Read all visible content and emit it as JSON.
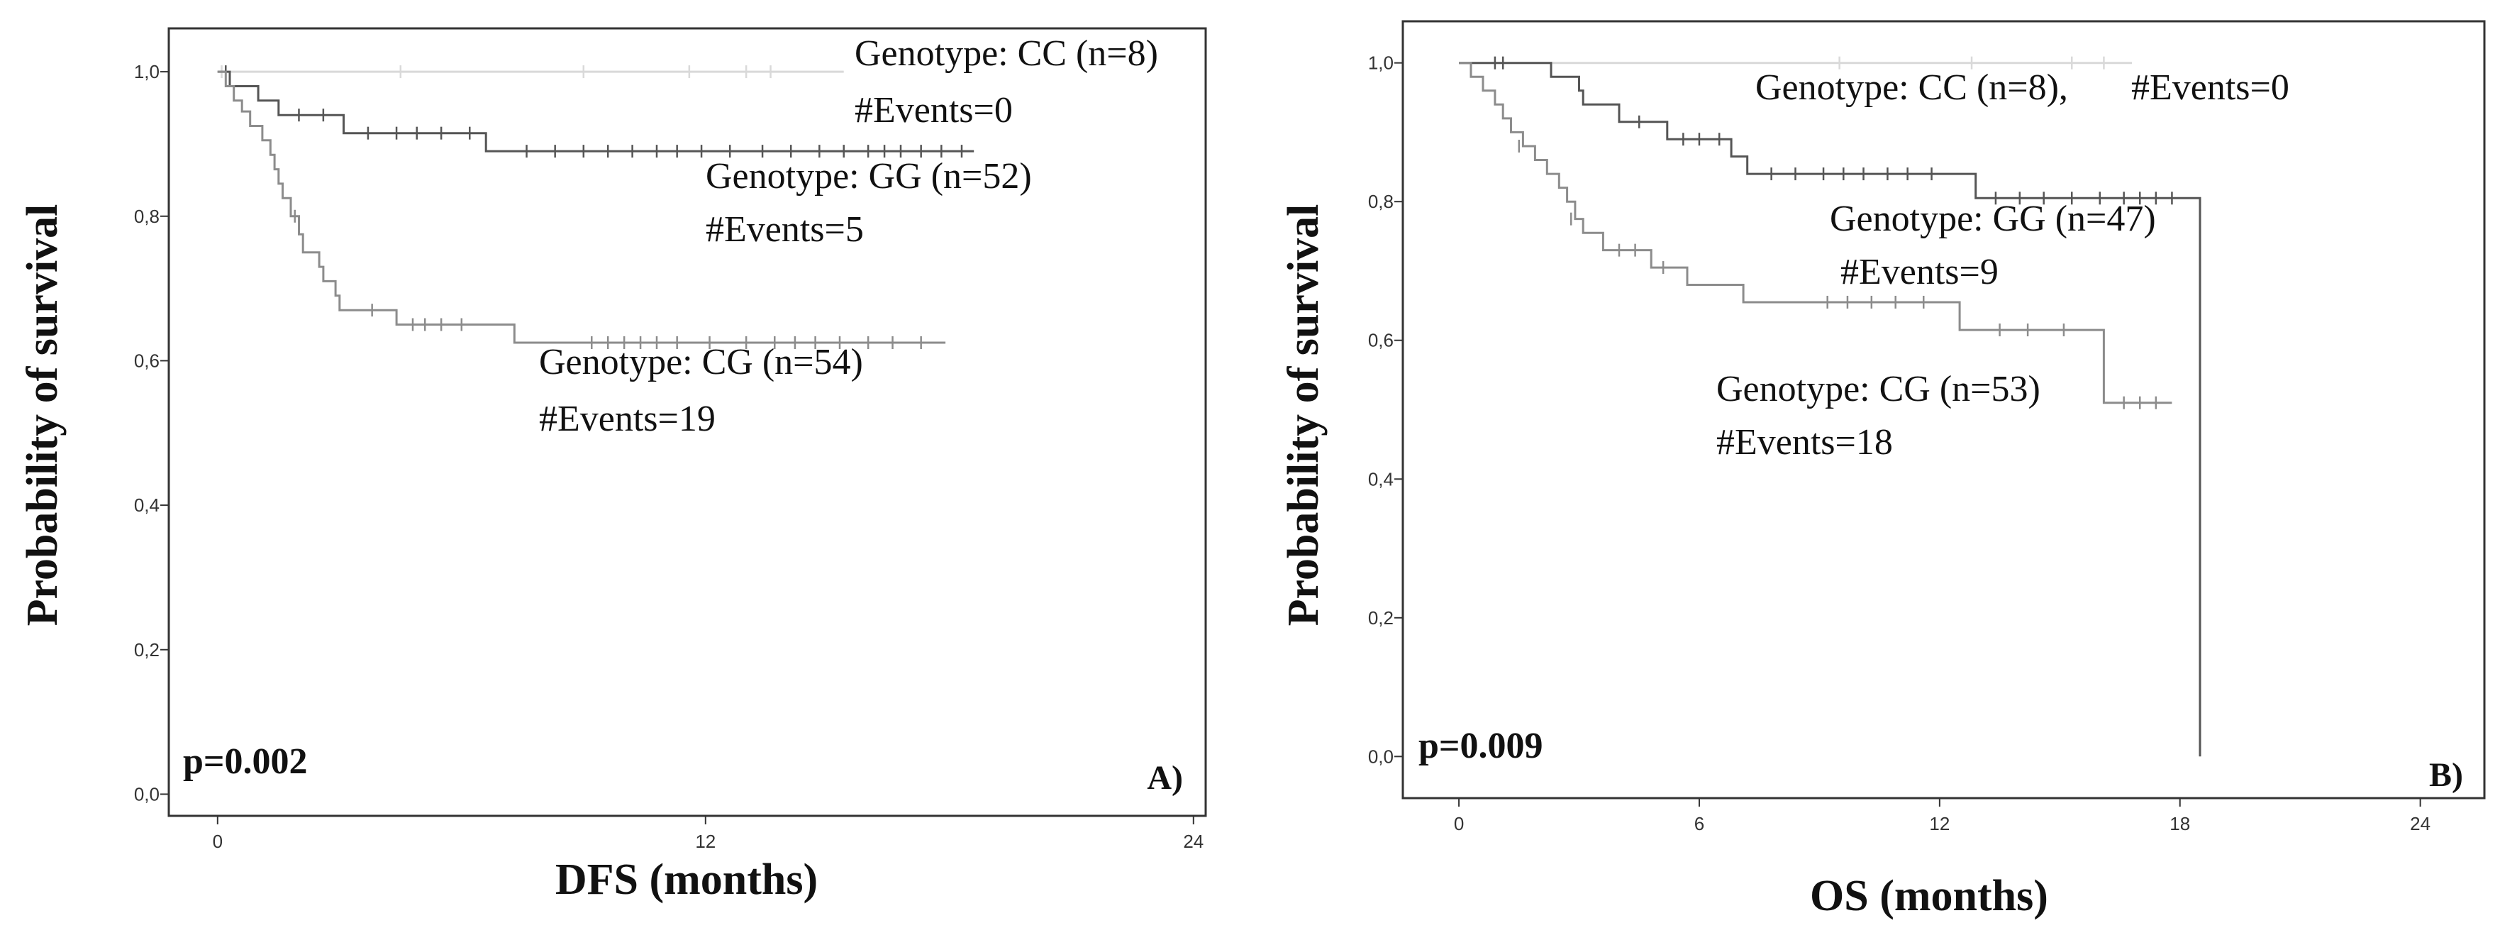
{
  "chart_data": [
    {
      "type": "line",
      "subtype": "kaplan-meier",
      "panel_label": "A)",
      "xlabel": "DFS (months)",
      "ylabel": "Probability of survival",
      "xlim": [
        -1.2,
        24.3
      ],
      "ylim": [
        -0.03,
        1.06
      ],
      "x_ticks": [
        0,
        12,
        24
      ],
      "x_tick_labels": [
        "0",
        "12",
        "24"
      ],
      "y_ticks": [
        0,
        0.2,
        0.4,
        0.6,
        0.8,
        1.0
      ],
      "y_tick_labels": [
        "0,0",
        "0,2",
        "0,4",
        "0,6",
        "0,8",
        "1,0"
      ],
      "grid": false,
      "p_value": "p=0.002",
      "series": [
        {
          "name": "Genotype: CC (n=8)",
          "events_label": "#Events=0",
          "color": "#d9d9d9",
          "steps": [
            [
              0,
              1.0
            ],
            [
              15.4,
              1.0
            ]
          ],
          "censored": [
            [
              0.1,
              1.0
            ],
            [
              4.5,
              1.0
            ],
            [
              9.0,
              1.0
            ],
            [
              11.6,
              1.0
            ],
            [
              13.0,
              1.0
            ],
            [
              13.6,
              1.0
            ]
          ]
        },
        {
          "name": "Genotype: GG (n=52)",
          "events_label": "#Events=5",
          "color": "#555555",
          "steps": [
            [
              0,
              1.0
            ],
            [
              0.3,
              0.98
            ],
            [
              1.0,
              0.96
            ],
            [
              1.5,
              0.94
            ],
            [
              3.1,
              0.915
            ],
            [
              6.5,
              0.915
            ],
            [
              6.6,
              0.89
            ],
            [
              18.6,
              0.89
            ]
          ],
          "censored": [
            [
              0.2,
              1.0
            ],
            [
              2.0,
              0.94
            ],
            [
              2.6,
              0.94
            ],
            [
              3.7,
              0.915
            ],
            [
              4.4,
              0.915
            ],
            [
              4.9,
              0.915
            ],
            [
              5.5,
              0.915
            ],
            [
              6.2,
              0.915
            ],
            [
              7.6,
              0.89
            ],
            [
              8.3,
              0.89
            ],
            [
              9.0,
              0.89
            ],
            [
              9.6,
              0.89
            ],
            [
              10.2,
              0.89
            ],
            [
              10.8,
              0.89
            ],
            [
              11.3,
              0.89
            ],
            [
              11.9,
              0.89
            ],
            [
              12.6,
              0.89
            ],
            [
              13.4,
              0.89
            ],
            [
              14.1,
              0.89
            ],
            [
              14.8,
              0.89
            ],
            [
              15.4,
              0.89
            ],
            [
              16.0,
              0.89
            ],
            [
              16.4,
              0.89
            ],
            [
              16.8,
              0.89
            ],
            [
              17.3,
              0.89
            ],
            [
              17.8,
              0.89
            ],
            [
              18.3,
              0.89
            ]
          ]
        },
        {
          "name": "Genotype: CG (n=54)",
          "events_label": "#Events=19",
          "color": "#8c8c8c",
          "steps": [
            [
              0,
              1.0
            ],
            [
              0.2,
              0.98
            ],
            [
              0.4,
              0.96
            ],
            [
              0.6,
              0.945
            ],
            [
              0.8,
              0.925
            ],
            [
              1.1,
              0.905
            ],
            [
              1.3,
              0.885
            ],
            [
              1.4,
              0.865
            ],
            [
              1.5,
              0.845
            ],
            [
              1.6,
              0.825
            ],
            [
              1.8,
              0.8
            ],
            [
              2.0,
              0.775
            ],
            [
              2.1,
              0.75
            ],
            [
              2.5,
              0.73
            ],
            [
              2.6,
              0.71
            ],
            [
              2.9,
              0.69
            ],
            [
              3.0,
              0.67
            ],
            [
              4.2,
              0.67
            ],
            [
              4.4,
              0.65
            ],
            [
              7.2,
              0.65
            ],
            [
              7.3,
              0.625
            ],
            [
              17.9,
              0.625
            ]
          ],
          "censored": [
            [
              1.9,
              0.8
            ],
            [
              3.8,
              0.67
            ],
            [
              4.8,
              0.65
            ],
            [
              5.1,
              0.65
            ],
            [
              5.5,
              0.65
            ],
            [
              6.0,
              0.65
            ],
            [
              9.2,
              0.625
            ],
            [
              9.6,
              0.625
            ],
            [
              10.0,
              0.625
            ],
            [
              10.4,
              0.625
            ],
            [
              10.8,
              0.625
            ],
            [
              11.3,
              0.625
            ],
            [
              12.1,
              0.625
            ],
            [
              13.0,
              0.625
            ],
            [
              13.7,
              0.625
            ],
            [
              14.2,
              0.625
            ],
            [
              14.7,
              0.625
            ],
            [
              15.3,
              0.625
            ],
            [
              16.0,
              0.625
            ],
            [
              16.6,
              0.625
            ],
            [
              17.3,
              0.625
            ]
          ]
        }
      ]
    },
    {
      "type": "line",
      "subtype": "kaplan-meier",
      "panel_label": "B)",
      "xlabel": "OS (months)",
      "ylabel": "Probability of survival",
      "xlim": [
        -1.4,
        25.6
      ],
      "ylim": [
        -0.06,
        1.06
      ],
      "x_ticks": [
        0,
        6,
        12,
        18,
        24
      ],
      "x_tick_labels": [
        "0",
        "6",
        "12",
        "18",
        "24"
      ],
      "y_ticks": [
        0,
        0.2,
        0.4,
        0.6,
        0.8,
        1.0
      ],
      "y_tick_labels": [
        "0,0",
        "0,2",
        "0,4",
        "0,6",
        "0,8",
        "1,0"
      ],
      "grid": false,
      "p_value": "p=0.009",
      "series": [
        {
          "name": "Genotype: CC (n=8),",
          "events_label": "#Events=0",
          "color": "#d9d9d9",
          "steps": [
            [
              0,
              1.0
            ],
            [
              16.8,
              1.0
            ]
          ],
          "censored": [
            [
              0.9,
              1.0
            ],
            [
              1.1,
              1.0
            ],
            [
              9.5,
              1.0
            ],
            [
              12.8,
              1.0
            ],
            [
              15.3,
              1.0
            ],
            [
              16.1,
              1.0
            ]
          ]
        },
        {
          "name": "Genotype: GG (n=47)",
          "events_label": "#Events=9",
          "color": "#555555",
          "steps": [
            [
              0,
              1.0
            ],
            [
              2.2,
              1.0
            ],
            [
              2.3,
              0.98
            ],
            [
              3.0,
              0.96
            ],
            [
              3.1,
              0.94
            ],
            [
              3.9,
              0.94
            ],
            [
              4.0,
              0.915
            ],
            [
              5.1,
              0.915
            ],
            [
              5.2,
              0.89
            ],
            [
              6.7,
              0.89
            ],
            [
              6.8,
              0.865
            ],
            [
              7.1,
              0.865
            ],
            [
              7.2,
              0.84
            ],
            [
              12.8,
              0.84
            ],
            [
              12.9,
              0.805
            ],
            [
              18.5,
              0.805
            ],
            [
              18.5,
              0.0
            ]
          ],
          "censored": [
            [
              0.9,
              1.0
            ],
            [
              1.1,
              1.0
            ],
            [
              4.5,
              0.915
            ],
            [
              5.6,
              0.89
            ],
            [
              6.0,
              0.89
            ],
            [
              6.5,
              0.89
            ],
            [
              7.8,
              0.84
            ],
            [
              8.4,
              0.84
            ],
            [
              9.1,
              0.84
            ],
            [
              9.6,
              0.84
            ],
            [
              10.1,
              0.84
            ],
            [
              10.7,
              0.84
            ],
            [
              11.2,
              0.84
            ],
            [
              11.8,
              0.84
            ],
            [
              13.4,
              0.805
            ],
            [
              14.0,
              0.805
            ],
            [
              14.6,
              0.805
            ],
            [
              15.3,
              0.805
            ],
            [
              16.0,
              0.805
            ],
            [
              16.6,
              0.805
            ],
            [
              17.0,
              0.805
            ],
            [
              17.4,
              0.805
            ],
            [
              17.8,
              0.805
            ]
          ]
        },
        {
          "name": "Genotype: CG (n=53)",
          "events_label": "#Events=18",
          "color": "#8c8c8c",
          "steps": [
            [
              0,
              1.0
            ],
            [
              0.3,
              0.98
            ],
            [
              0.6,
              0.96
            ],
            [
              0.9,
              0.94
            ],
            [
              1.1,
              0.92
            ],
            [
              1.3,
              0.9
            ],
            [
              1.6,
              0.88
            ],
            [
              1.9,
              0.86
            ],
            [
              2.2,
              0.84
            ],
            [
              2.5,
              0.82
            ],
            [
              2.7,
              0.8
            ],
            [
              2.9,
              0.775
            ],
            [
              3.1,
              0.755
            ],
            [
              3.5,
              0.755
            ],
            [
              3.6,
              0.73
            ],
            [
              4.7,
              0.73
            ],
            [
              4.8,
              0.705
            ],
            [
              5.6,
              0.705
            ],
            [
              5.7,
              0.68
            ],
            [
              7.0,
              0.68
            ],
            [
              7.1,
              0.655
            ],
            [
              12.4,
              0.655
            ],
            [
              12.5,
              0.615
            ],
            [
              16.0,
              0.615
            ],
            [
              16.1,
              0.51
            ],
            [
              17.8,
              0.51
            ]
          ],
          "censored": [
            [
              1.5,
              0.88
            ],
            [
              2.8,
              0.775
            ],
            [
              4.0,
              0.73
            ],
            [
              4.4,
              0.73
            ],
            [
              5.1,
              0.705
            ],
            [
              9.2,
              0.655
            ],
            [
              9.7,
              0.655
            ],
            [
              10.3,
              0.655
            ],
            [
              10.9,
              0.655
            ],
            [
              11.6,
              0.655
            ],
            [
              13.5,
              0.615
            ],
            [
              14.2,
              0.615
            ],
            [
              15.1,
              0.615
            ],
            [
              16.6,
              0.51
            ],
            [
              17.0,
              0.51
            ],
            [
              17.4,
              0.51
            ]
          ]
        }
      ]
    }
  ]
}
